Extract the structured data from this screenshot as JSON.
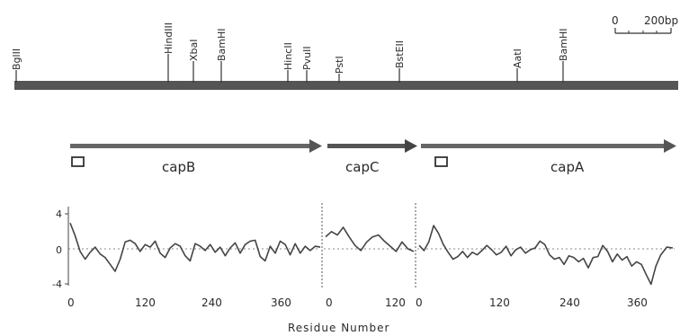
{
  "scale_bar": {
    "start_label": "0",
    "end_label": "200bp"
  },
  "restriction_sites": [
    "BglII",
    "HindIII",
    "XbaI",
    "BamHI",
    "HincII",
    "PvuII",
    "PstI",
    "BstEII",
    "AatI",
    "BamHI"
  ],
  "genes": [
    {
      "name": "capB",
      "label": "capB"
    },
    {
      "name": "capC",
      "label": "capC"
    },
    {
      "name": "capA",
      "label": "capA"
    }
  ],
  "hydropathy": {
    "x_axis_label": "Residue Number",
    "y_ticks": [
      "4",
      "0",
      "-4"
    ],
    "x_ticks": [
      [
        "0",
        "120",
        "240",
        "360"
      ],
      [
        "0",
        "120"
      ],
      [
        "0",
        "120",
        "240",
        "360"
      ]
    ]
  },
  "chart_data": [
    {
      "type": "line",
      "series_label": "capB",
      "ylim": [
        -4,
        4
      ],
      "xlim": [
        0,
        400
      ],
      "x": [
        0,
        8,
        16,
        24,
        32,
        40,
        48,
        56,
        64,
        72,
        80,
        88,
        96,
        104,
        112,
        120,
        128,
        136,
        144,
        152,
        160,
        168,
        176,
        184,
        192,
        200,
        208,
        216,
        224,
        232,
        240,
        248,
        256,
        264,
        272,
        280,
        288,
        296,
        304,
        312,
        320,
        328,
        336,
        344,
        352,
        360,
        368,
        376,
        384,
        392,
        400
      ],
      "y": [
        3.0,
        1.5,
        -0.3,
        -1.2,
        -0.4,
        0.2,
        -0.6,
        -1.0,
        -1.8,
        -2.6,
        -1.2,
        0.8,
        1.0,
        0.6,
        -0.3,
        0.5,
        0.2,
        0.9,
        -0.5,
        -1.0,
        0.1,
        0.6,
        0.3,
        -0.8,
        -1.4,
        0.6,
        0.3,
        -0.2,
        0.5,
        -0.4,
        0.2,
        -0.8,
        0.1,
        0.7,
        -0.5,
        0.5,
        0.9,
        1.0,
        -0.9,
        -1.4,
        0.3,
        -0.5,
        0.9,
        0.5,
        -0.7,
        0.6,
        -0.5,
        0.3,
        -0.2,
        0.3,
        0.2
      ]
    },
    {
      "type": "line",
      "series_label": "capC",
      "ylim": [
        -4,
        4
      ],
      "xlim": [
        0,
        150
      ],
      "x": [
        0,
        10,
        20,
        30,
        40,
        50,
        60,
        70,
        80,
        90,
        100,
        110,
        120,
        130,
        140,
        150
      ],
      "y": [
        1.4,
        2.0,
        1.6,
        2.5,
        1.4,
        0.4,
        -0.2,
        0.8,
        1.4,
        1.6,
        0.9,
        0.3,
        -0.3,
        0.8,
        0.0,
        -0.3
      ]
    },
    {
      "type": "line",
      "series_label": "capA",
      "ylim": [
        -4,
        4
      ],
      "xlim": [
        0,
        420
      ],
      "x": [
        0,
        8,
        16,
        24,
        32,
        40,
        48,
        56,
        64,
        72,
        80,
        88,
        96,
        104,
        112,
        120,
        128,
        136,
        144,
        152,
        160,
        168,
        176,
        184,
        192,
        200,
        208,
        216,
        224,
        232,
        240,
        248,
        256,
        264,
        272,
        280,
        288,
        296,
        304,
        312,
        320,
        328,
        336,
        344,
        352,
        360,
        368,
        376,
        384,
        392,
        400,
        410,
        420
      ],
      "y": [
        0.4,
        -0.2,
        0.8,
        2.7,
        1.8,
        0.5,
        -0.4,
        -1.2,
        -0.9,
        -0.3,
        -1.0,
        -0.4,
        -0.7,
        -0.2,
        0.4,
        -0.1,
        -0.7,
        -0.4,
        0.3,
        -0.8,
        -0.1,
        0.2,
        -0.5,
        -0.1,
        0.1,
        0.9,
        0.5,
        -0.7,
        -1.2,
        -1.0,
        -1.8,
        -0.8,
        -1.0,
        -1.5,
        -1.1,
        -2.2,
        -1.0,
        -0.9,
        0.4,
        -0.3,
        -1.5,
        -0.6,
        -1.3,
        -0.9,
        -2.0,
        -1.5,
        -1.8,
        -3.0,
        -4.1,
        -2.0,
        -0.7,
        0.2,
        0.1
      ]
    }
  ]
}
